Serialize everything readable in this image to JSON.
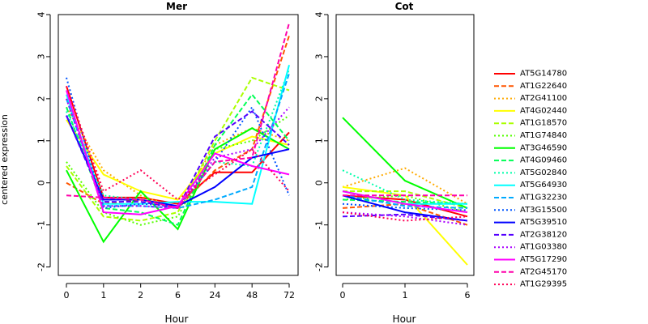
{
  "ylabel": "centered expression",
  "chart_data": [
    {
      "type": "line",
      "title": "Mer",
      "xlabel": "Hour",
      "categories": [
        "0",
        "1",
        "2",
        "6",
        "24",
        "48",
        "72"
      ],
      "ylim": [
        -2.2,
        4
      ],
      "yticks": [
        -2,
        -1,
        0,
        1,
        2,
        3,
        4
      ],
      "series": [
        {
          "name": "AT5G14780",
          "values": [
            2.3,
            -0.35,
            -0.35,
            -0.5,
            0.25,
            0.25,
            1.2
          ]
        },
        {
          "name": "AT1G22640",
          "values": [
            0.0,
            -0.5,
            -0.4,
            -0.6,
            0.3,
            0.8,
            3.5
          ]
        },
        {
          "name": "AT2G41100",
          "values": [
            1.8,
            0.3,
            -0.3,
            -0.6,
            0.9,
            1.3,
            1.0
          ]
        },
        {
          "name": "AT4G02440",
          "values": [
            1.5,
            0.2,
            -0.2,
            -0.4,
            0.7,
            1.1,
            0.9
          ]
        },
        {
          "name": "AT1G18570",
          "values": [
            0.4,
            -0.8,
            -0.9,
            -0.7,
            1.0,
            2.5,
            2.2
          ]
        },
        {
          "name": "AT1G74840",
          "values": [
            0.5,
            -0.7,
            -1.0,
            -0.8,
            0.8,
            1.0,
            1.6
          ]
        },
        {
          "name": "AT3G46590",
          "values": [
            0.3,
            -1.4,
            -0.2,
            -1.1,
            0.8,
            1.3,
            0.8
          ]
        },
        {
          "name": "AT4G09460",
          "values": [
            1.8,
            -0.6,
            -0.7,
            -1.0,
            0.9,
            2.1,
            1.0
          ]
        },
        {
          "name": "AT5G02840",
          "values": [
            1.7,
            -0.3,
            -0.4,
            -0.6,
            0.5,
            0.4,
            2.7
          ]
        },
        {
          "name": "AT5G64930",
          "values": [
            2.1,
            -0.5,
            -0.5,
            -0.45,
            -0.45,
            -0.5,
            2.8
          ]
        },
        {
          "name": "AT1G32230",
          "values": [
            2.0,
            -0.55,
            -0.55,
            -0.6,
            -0.4,
            -0.1,
            2.6
          ]
        },
        {
          "name": "AT3G15500",
          "values": [
            2.5,
            -0.6,
            -0.5,
            -0.55,
            0.5,
            1.8,
            -0.3
          ]
        },
        {
          "name": "AT5G39510",
          "values": [
            1.6,
            -0.4,
            -0.4,
            -0.55,
            -0.1,
            0.6,
            0.8
          ]
        },
        {
          "name": "AT2G38120",
          "values": [
            1.6,
            -0.45,
            -0.45,
            -0.6,
            1.1,
            1.7,
            0.9
          ]
        },
        {
          "name": "AT1G03380",
          "values": [
            2.0,
            -0.55,
            -0.55,
            -0.6,
            0.6,
            0.8,
            1.8
          ]
        },
        {
          "name": "AT5G17290",
          "values": [
            2.2,
            -0.7,
            -0.75,
            -0.55,
            0.7,
            0.4,
            0.2
          ]
        },
        {
          "name": "AT2G45170",
          "values": [
            -0.3,
            -0.35,
            -0.4,
            -0.6,
            0.5,
            0.6,
            3.8
          ]
        },
        {
          "name": "AT1G29395",
          "values": [
            2.3,
            -0.2,
            0.3,
            -0.4,
            0.2,
            0.8,
            -0.2
          ]
        }
      ]
    },
    {
      "type": "line",
      "title": "Cot",
      "xlabel": "Hour",
      "categories": [
        "0",
        "1",
        "6"
      ],
      "ylim": [
        -2.2,
        4
      ],
      "yticks": [
        -2,
        -1,
        0,
        1,
        2,
        3,
        4
      ],
      "series": [
        {
          "name": "AT5G14780",
          "values": [
            -0.3,
            -0.4,
            -0.8
          ]
        },
        {
          "name": "AT1G22640",
          "values": [
            -0.6,
            -0.5,
            -1.0
          ]
        },
        {
          "name": "AT2G41100",
          "values": [
            -0.1,
            0.35,
            -0.5
          ]
        },
        {
          "name": "AT4G02440",
          "values": [
            -0.1,
            -0.3,
            -1.95
          ]
        },
        {
          "name": "AT1G18570",
          "values": [
            -0.2,
            -0.2,
            -0.6
          ]
        },
        {
          "name": "AT1G74840",
          "values": [
            -0.4,
            -0.3,
            -0.7
          ]
        },
        {
          "name": "AT3G46590",
          "values": [
            1.55,
            0.05,
            -0.6
          ]
        },
        {
          "name": "AT4G09460",
          "values": [
            -0.4,
            -0.45,
            -0.5
          ]
        },
        {
          "name": "AT5G02840",
          "values": [
            0.3,
            -0.4,
            -0.5
          ]
        },
        {
          "name": "AT5G64930",
          "values": [
            -0.2,
            -0.5,
            -0.5
          ]
        },
        {
          "name": "AT1G32230",
          "values": [
            -0.3,
            -0.55,
            -0.6
          ]
        },
        {
          "name": "AT3G15500",
          "values": [
            -0.5,
            -0.6,
            -0.65
          ]
        },
        {
          "name": "AT5G39510",
          "values": [
            -0.3,
            -0.7,
            -0.9
          ]
        },
        {
          "name": "AT2G38120",
          "values": [
            -0.8,
            -0.75,
            -0.9
          ]
        },
        {
          "name": "AT1G03380",
          "values": [
            -0.7,
            -0.8,
            -1.0
          ]
        },
        {
          "name": "AT5G17290",
          "values": [
            -0.2,
            -0.5,
            -0.7
          ]
        },
        {
          "name": "AT2G45170",
          "values": [
            -0.3,
            -0.3,
            -0.3
          ]
        },
        {
          "name": "AT1G29395",
          "values": [
            -0.7,
            -0.9,
            -0.8
          ]
        }
      ]
    }
  ],
  "legend": {
    "placement": "right",
    "items": [
      {
        "name": "AT5G14780",
        "color": "#ff0000",
        "dash": "solid"
      },
      {
        "name": "AT1G22640",
        "color": "#ff5500",
        "dash": "dashed"
      },
      {
        "name": "AT2G41100",
        "color": "#ffaa00",
        "dash": "dotted"
      },
      {
        "name": "AT4G02440",
        "color": "#ffff00",
        "dash": "solid"
      },
      {
        "name": "AT1G18570",
        "color": "#aaff00",
        "dash": "dashed"
      },
      {
        "name": "AT1G74840",
        "color": "#55ff00",
        "dash": "dotted"
      },
      {
        "name": "AT3G46590",
        "color": "#00ff00",
        "dash": "solid"
      },
      {
        "name": "AT4G09460",
        "color": "#00ff55",
        "dash": "dashed"
      },
      {
        "name": "AT5G02840",
        "color": "#00ffaa",
        "dash": "dotted"
      },
      {
        "name": "AT5G64930",
        "color": "#00ffff",
        "dash": "solid"
      },
      {
        "name": "AT1G32230",
        "color": "#00aaff",
        "dash": "dashed"
      },
      {
        "name": "AT3G15500",
        "color": "#0055ff",
        "dash": "dotted"
      },
      {
        "name": "AT5G39510",
        "color": "#0000ff",
        "dash": "solid"
      },
      {
        "name": "AT2G38120",
        "color": "#5500ff",
        "dash": "dashed"
      },
      {
        "name": "AT1G03380",
        "color": "#aa00ff",
        "dash": "dotted"
      },
      {
        "name": "AT5G17290",
        "color": "#ff00ff",
        "dash": "solid"
      },
      {
        "name": "AT2G45170",
        "color": "#ff00aa",
        "dash": "dashed"
      },
      {
        "name": "AT1G29395",
        "color": "#ff0055",
        "dash": "dotted"
      }
    ]
  }
}
